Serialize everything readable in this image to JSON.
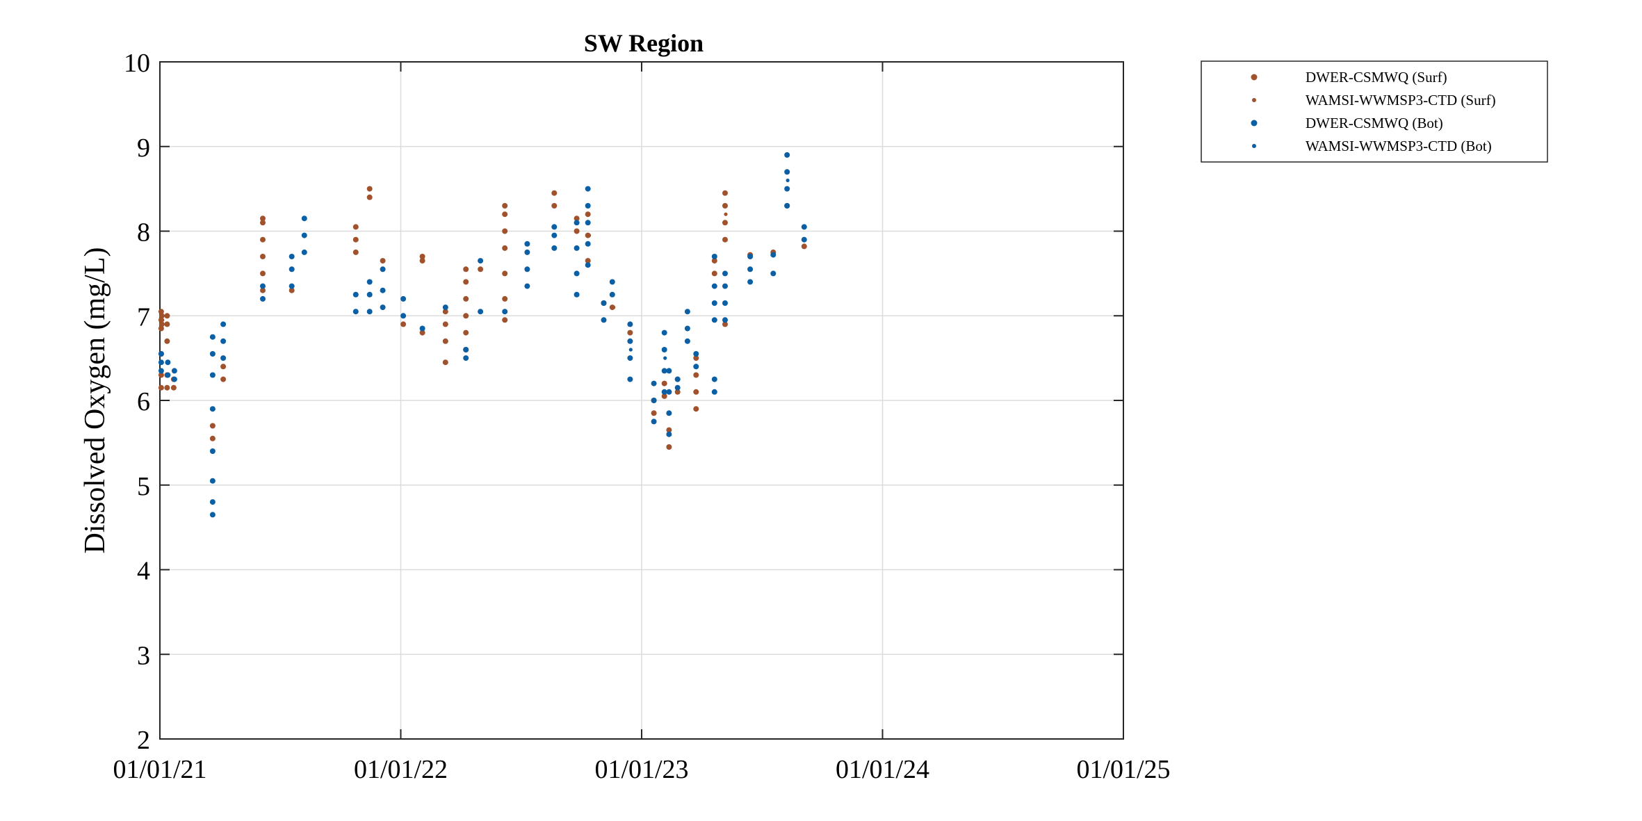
{
  "chart_data": {
    "type": "scatter",
    "title": "SW Region",
    "ylabel": "Dissolved Oxygen (mg/L)",
    "xlabel": "",
    "xlim": [
      "2021-01-01",
      "2025-01-01"
    ],
    "ylim": [
      2,
      10
    ],
    "x_ticks": [
      "01/01/21",
      "01/01/22",
      "01/01/23",
      "01/01/24",
      "01/01/25"
    ],
    "y_ticks": [
      2,
      3,
      4,
      5,
      6,
      7,
      8,
      9,
      10
    ],
    "grid": true,
    "legend_position": "outside-top-right",
    "colors": {
      "surf": "#a0522d",
      "bot": "#0b5fa5"
    },
    "legend": [
      "DWER-CSMWQ (Surf)",
      "WAMSI-WWMSP3-CTD (Surf)",
      "DWER-CSMWQ (Bot)",
      "WAMSI-WWMSP3-CTD (Bot)"
    ],
    "series": [
      {
        "name": "DWER-CSMWQ (Surf)",
        "color": "#a0522d",
        "points": [
          [
            "2021-01-03",
            6.15
          ],
          [
            "2021-01-03",
            6.3
          ],
          [
            "2021-01-03",
            6.55
          ],
          [
            "2021-01-03",
            6.85
          ],
          [
            "2021-01-03",
            6.95
          ],
          [
            "2021-01-03",
            7.05
          ],
          [
            "2021-01-04",
            6.9
          ],
          [
            "2021-01-04",
            7.0
          ],
          [
            "2021-01-12",
            6.15
          ],
          [
            "2021-01-12",
            6.3
          ],
          [
            "2021-01-12",
            6.7
          ],
          [
            "2021-01-12",
            6.9
          ],
          [
            "2021-01-12",
            7.0
          ],
          [
            "2021-01-22",
            6.15
          ],
          [
            "2021-01-22",
            6.25
          ],
          [
            "2021-03-22",
            5.55
          ],
          [
            "2021-03-22",
            5.7
          ],
          [
            "2021-04-07",
            6.25
          ],
          [
            "2021-04-07",
            6.4
          ],
          [
            "2021-06-06",
            7.3
          ],
          [
            "2021-06-06",
            7.5
          ],
          [
            "2021-06-06",
            7.7
          ],
          [
            "2021-06-06",
            7.9
          ],
          [
            "2021-06-06",
            8.1
          ],
          [
            "2021-06-06",
            8.15
          ],
          [
            "2021-07-20",
            7.3
          ],
          [
            "2021-10-25",
            7.75
          ],
          [
            "2021-10-25",
            7.9
          ],
          [
            "2021-10-25",
            8.05
          ],
          [
            "2021-11-15",
            8.4
          ],
          [
            "2021-11-15",
            8.5
          ],
          [
            "2021-12-05",
            7.65
          ],
          [
            "2022-01-05",
            6.9
          ],
          [
            "2022-02-03",
            6.8
          ],
          [
            "2022-02-03",
            7.65
          ],
          [
            "2022-02-03",
            7.7
          ],
          [
            "2022-03-10",
            6.45
          ],
          [
            "2022-03-10",
            6.7
          ],
          [
            "2022-03-10",
            6.9
          ],
          [
            "2022-03-10",
            7.05
          ],
          [
            "2022-04-10",
            6.6
          ],
          [
            "2022-04-10",
            6.8
          ],
          [
            "2022-04-10",
            7.0
          ],
          [
            "2022-04-10",
            7.2
          ],
          [
            "2022-04-10",
            7.4
          ],
          [
            "2022-04-10",
            7.55
          ],
          [
            "2022-05-02",
            7.55
          ],
          [
            "2022-06-08",
            6.95
          ],
          [
            "2022-06-08",
            7.2
          ],
          [
            "2022-06-08",
            7.5
          ],
          [
            "2022-06-08",
            7.8
          ],
          [
            "2022-06-08",
            8.0
          ],
          [
            "2022-06-08",
            8.2
          ],
          [
            "2022-06-08",
            8.3
          ],
          [
            "2022-08-22",
            8.3
          ],
          [
            "2022-08-22",
            8.45
          ],
          [
            "2022-09-25",
            8.0
          ],
          [
            "2022-09-25",
            8.15
          ],
          [
            "2022-10-12",
            7.95
          ],
          [
            "2022-10-12",
            8.2
          ],
          [
            "2022-10-12",
            7.65
          ],
          [
            "2022-11-05",
            7.15
          ],
          [
            "2022-11-18",
            7.1
          ],
          [
            "2022-12-15",
            6.8
          ],
          [
            "2023-01-20",
            5.85
          ],
          [
            "2023-01-20",
            6.0
          ],
          [
            "2023-02-05",
            6.05
          ],
          [
            "2023-02-05",
            6.2
          ],
          [
            "2023-02-12",
            5.45
          ],
          [
            "2023-02-12",
            5.65
          ],
          [
            "2023-02-25",
            6.1
          ],
          [
            "2023-02-25",
            6.25
          ],
          [
            "2023-03-25",
            5.9
          ],
          [
            "2023-03-25",
            6.1
          ],
          [
            "2023-03-25",
            6.3
          ],
          [
            "2023-03-25",
            6.5
          ],
          [
            "2023-04-22",
            7.5
          ],
          [
            "2023-04-22",
            7.65
          ],
          [
            "2023-05-08",
            6.9
          ],
          [
            "2023-05-08",
            7.9
          ],
          [
            "2023-05-08",
            8.1
          ],
          [
            "2023-05-08",
            8.3
          ],
          [
            "2023-05-08",
            8.45
          ],
          [
            "2023-06-15",
            7.72
          ],
          [
            "2023-07-20",
            7.75
          ],
          [
            "2023-08-10",
            8.3
          ],
          [
            "2023-09-05",
            7.82
          ]
        ]
      },
      {
        "name": "WAMSI-WWMSP3-CTD (Surf)",
        "color": "#a0522d",
        "points": [
          [
            "2021-01-05",
            6.95
          ],
          [
            "2022-10-14",
            7.95
          ],
          [
            "2022-11-20",
            7.1
          ],
          [
            "2023-02-13",
            5.45
          ],
          [
            "2023-05-09",
            8.2
          ]
        ]
      },
      {
        "name": "DWER-CSMWQ (Bot)",
        "color": "#0b5fa5",
        "points": [
          [
            "2021-01-03",
            6.35
          ],
          [
            "2021-01-03",
            6.45
          ],
          [
            "2021-01-03",
            6.55
          ],
          [
            "2021-01-13",
            6.3
          ],
          [
            "2021-01-13",
            6.45
          ],
          [
            "2021-01-23",
            6.25
          ],
          [
            "2021-01-23",
            6.35
          ],
          [
            "2021-03-22",
            4.65
          ],
          [
            "2021-03-22",
            4.8
          ],
          [
            "2021-03-22",
            5.05
          ],
          [
            "2021-03-22",
            5.4
          ],
          [
            "2021-03-22",
            5.9
          ],
          [
            "2021-03-22",
            6.3
          ],
          [
            "2021-03-22",
            6.55
          ],
          [
            "2021-03-22",
            6.75
          ],
          [
            "2021-04-07",
            6.5
          ],
          [
            "2021-04-07",
            6.7
          ],
          [
            "2021-04-07",
            6.9
          ],
          [
            "2021-06-06",
            7.2
          ],
          [
            "2021-06-06",
            7.35
          ],
          [
            "2021-07-20",
            7.35
          ],
          [
            "2021-07-20",
            7.55
          ],
          [
            "2021-07-20",
            7.7
          ],
          [
            "2021-08-08",
            7.75
          ],
          [
            "2021-08-08",
            7.95
          ],
          [
            "2021-08-08",
            8.15
          ],
          [
            "2021-10-25",
            7.05
          ],
          [
            "2021-10-25",
            7.25
          ],
          [
            "2021-11-15",
            7.05
          ],
          [
            "2021-11-15",
            7.25
          ],
          [
            "2021-11-15",
            7.4
          ],
          [
            "2021-12-05",
            7.1
          ],
          [
            "2021-12-05",
            7.3
          ],
          [
            "2021-12-05",
            7.55
          ],
          [
            "2022-01-05",
            7.0
          ],
          [
            "2022-01-05",
            7.2
          ],
          [
            "2022-02-03",
            6.85
          ],
          [
            "2022-03-10",
            7.1
          ],
          [
            "2022-04-10",
            6.5
          ],
          [
            "2022-04-10",
            6.6
          ],
          [
            "2022-05-02",
            7.05
          ],
          [
            "2022-05-02",
            7.65
          ],
          [
            "2022-06-08",
            7.05
          ],
          [
            "2022-07-12",
            7.35
          ],
          [
            "2022-07-12",
            7.55
          ],
          [
            "2022-07-12",
            7.75
          ],
          [
            "2022-07-12",
            7.85
          ],
          [
            "2022-08-22",
            7.8
          ],
          [
            "2022-08-22",
            7.95
          ],
          [
            "2022-08-22",
            8.05
          ],
          [
            "2022-09-25",
            7.25
          ],
          [
            "2022-09-25",
            7.5
          ],
          [
            "2022-09-25",
            7.8
          ],
          [
            "2022-09-25",
            8.1
          ],
          [
            "2022-10-12",
            7.6
          ],
          [
            "2022-10-12",
            7.85
          ],
          [
            "2022-10-12",
            8.1
          ],
          [
            "2022-10-12",
            8.3
          ],
          [
            "2022-10-12",
            8.5
          ],
          [
            "2022-11-05",
            6.95
          ],
          [
            "2022-11-05",
            7.15
          ],
          [
            "2022-11-18",
            7.25
          ],
          [
            "2022-11-18",
            7.4
          ],
          [
            "2022-12-15",
            6.25
          ],
          [
            "2022-12-15",
            6.5
          ],
          [
            "2022-12-15",
            6.7
          ],
          [
            "2022-12-15",
            6.9
          ],
          [
            "2023-01-20",
            5.75
          ],
          [
            "2023-01-20",
            6.0
          ],
          [
            "2023-01-20",
            6.2
          ],
          [
            "2023-02-05",
            6.1
          ],
          [
            "2023-02-05",
            6.35
          ],
          [
            "2023-02-05",
            6.6
          ],
          [
            "2023-02-05",
            6.8
          ],
          [
            "2023-02-12",
            5.6
          ],
          [
            "2023-02-12",
            5.85
          ],
          [
            "2023-02-12",
            6.1
          ],
          [
            "2023-02-12",
            6.35
          ],
          [
            "2023-02-25",
            6.15
          ],
          [
            "2023-02-25",
            6.25
          ],
          [
            "2023-03-12",
            6.7
          ],
          [
            "2023-03-12",
            6.85
          ],
          [
            "2023-03-12",
            7.05
          ],
          [
            "2023-03-25",
            6.4
          ],
          [
            "2023-03-25",
            6.55
          ],
          [
            "2023-04-22",
            6.1
          ],
          [
            "2023-04-22",
            6.25
          ],
          [
            "2023-04-22",
            6.95
          ],
          [
            "2023-04-22",
            7.15
          ],
          [
            "2023-04-22",
            7.35
          ],
          [
            "2023-04-22",
            7.7
          ],
          [
            "2023-05-08",
            6.95
          ],
          [
            "2023-05-08",
            7.15
          ],
          [
            "2023-05-08",
            7.35
          ],
          [
            "2023-05-08",
            7.5
          ],
          [
            "2023-06-15",
            7.4
          ],
          [
            "2023-06-15",
            7.55
          ],
          [
            "2023-06-15",
            7.7
          ],
          [
            "2023-07-20",
            7.5
          ],
          [
            "2023-07-20",
            7.72
          ],
          [
            "2023-08-10",
            8.3
          ],
          [
            "2023-08-10",
            8.5
          ],
          [
            "2023-08-10",
            8.7
          ],
          [
            "2023-08-10",
            8.9
          ],
          [
            "2023-09-05",
            7.9
          ],
          [
            "2023-09-05",
            8.05
          ]
        ]
      },
      {
        "name": "WAMSI-WWMSP3-CTD (Bot)",
        "color": "#0b5fa5",
        "points": [
          [
            "2021-01-04",
            6.45
          ],
          [
            "2022-10-13",
            8.3
          ],
          [
            "2022-12-16",
            6.6
          ],
          [
            "2023-02-06",
            6.5
          ],
          [
            "2023-08-11",
            8.6
          ]
        ]
      }
    ]
  }
}
